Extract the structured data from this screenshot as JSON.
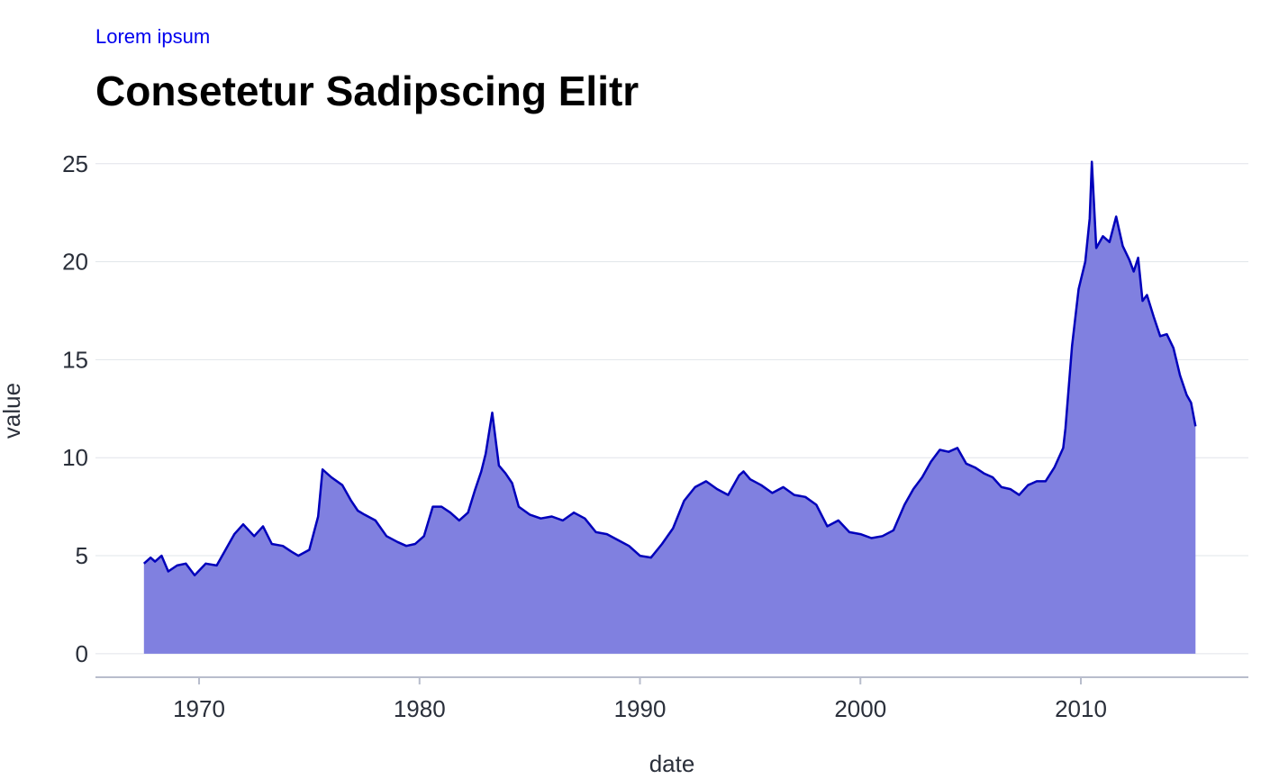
{
  "chart_data": {
    "type": "area",
    "subtitle": "Lorem ipsum",
    "title": "Consetetur Sadipscing Elitr",
    "xlabel": "date",
    "ylabel": "value",
    "xlim": [
      1965.3,
      2017.6
    ],
    "ylim": [
      -1.2,
      26
    ],
    "xticks": [
      1970,
      1980,
      1990,
      2000,
      2010
    ],
    "yticks": [
      0,
      5,
      10,
      15,
      20,
      25
    ],
    "grid": "horizontal",
    "colors": {
      "line": "#0000bb",
      "fill": "#8080e0",
      "grid": "#e1e4ea",
      "axis": "#b8bdcc",
      "tick_text": "#2a2f3a"
    },
    "series": [
      {
        "x": [
          1967.5,
          1967.8,
          1968.0,
          1968.3,
          1968.6,
          1969.0,
          1969.4,
          1969.8,
          1970.3,
          1970.8,
          1971.2,
          1971.6,
          1972.0,
          1972.5,
          1972.9,
          1973.3,
          1973.8,
          1974.2,
          1974.5,
          1975.0,
          1975.4,
          1975.6,
          1976.0,
          1976.5,
          1976.9,
          1977.2,
          1977.5,
          1978.0,
          1978.5,
          1979.0,
          1979.4,
          1979.8,
          1980.2,
          1980.6,
          1981.0,
          1981.4,
          1981.8,
          1982.2,
          1982.5,
          1982.8,
          1983.0,
          1983.3,
          1983.6,
          1983.9,
          1984.2,
          1984.5,
          1985.0,
          1985.5,
          1986.0,
          1986.5,
          1987.0,
          1987.5,
          1988.0,
          1988.5,
          1989.0,
          1989.5,
          1990.0,
          1990.5,
          1991.0,
          1991.5,
          1992.0,
          1992.5,
          1993.0,
          1993.5,
          1994.0,
          1994.5,
          1994.7,
          1995.0,
          1995.5,
          1996.0,
          1996.5,
          1997.0,
          1997.5,
          1998.0,
          1998.5,
          1999.0,
          1999.5,
          2000.0,
          2000.5,
          2001.0,
          2001.5,
          2002.0,
          2002.4,
          2002.8,
          2003.2,
          2003.6,
          2004.0,
          2004.4,
          2004.8,
          2005.2,
          2005.6,
          2006.0,
          2006.4,
          2006.8,
          2007.2,
          2007.6,
          2008.0,
          2008.4,
          2008.8,
          2009.2,
          2009.3,
          2009.6,
          2009.9,
          2010.2,
          2010.4,
          2010.5,
          2010.7,
          2011.0,
          2011.3,
          2011.6,
          2011.9,
          2012.2,
          2012.4,
          2012.6,
          2012.8,
          2013.0,
          2013.3,
          2013.6,
          2013.9,
          2014.2,
          2014.5,
          2014.8,
          2015.0,
          2015.2
        ],
        "values": [
          4.6,
          4.9,
          4.7,
          5.0,
          4.2,
          4.5,
          4.6,
          4.0,
          4.6,
          4.5,
          5.3,
          6.1,
          6.6,
          6.0,
          6.5,
          5.6,
          5.5,
          5.2,
          5.0,
          5.3,
          7.0,
          9.4,
          9.0,
          8.6,
          7.8,
          7.3,
          7.1,
          6.8,
          6.0,
          5.7,
          5.5,
          5.6,
          6.0,
          7.5,
          7.5,
          7.2,
          6.8,
          7.2,
          8.3,
          9.3,
          10.2,
          12.3,
          9.6,
          9.2,
          8.7,
          7.5,
          7.1,
          6.9,
          7.0,
          6.8,
          7.2,
          6.9,
          6.2,
          6.1,
          5.8,
          5.5,
          5.0,
          4.9,
          5.6,
          6.4,
          7.8,
          8.5,
          8.8,
          8.4,
          8.1,
          9.1,
          9.3,
          8.9,
          8.6,
          8.2,
          8.5,
          8.1,
          8.0,
          7.6,
          6.5,
          6.8,
          6.2,
          6.1,
          5.9,
          6.0,
          6.3,
          7.6,
          8.4,
          9.0,
          9.8,
          10.4,
          10.3,
          10.5,
          9.7,
          9.5,
          9.2,
          9.0,
          8.5,
          8.4,
          8.1,
          8.6,
          8.8,
          8.8,
          9.5,
          10.5,
          11.5,
          15.7,
          18.6,
          20.0,
          22.2,
          25.1,
          20.7,
          21.3,
          21.0,
          22.3,
          20.8,
          20.1,
          19.5,
          20.2,
          18.0,
          18.3,
          17.2,
          16.2,
          16.3,
          15.6,
          14.2,
          13.2,
          12.8,
          11.6
        ]
      }
    ]
  }
}
